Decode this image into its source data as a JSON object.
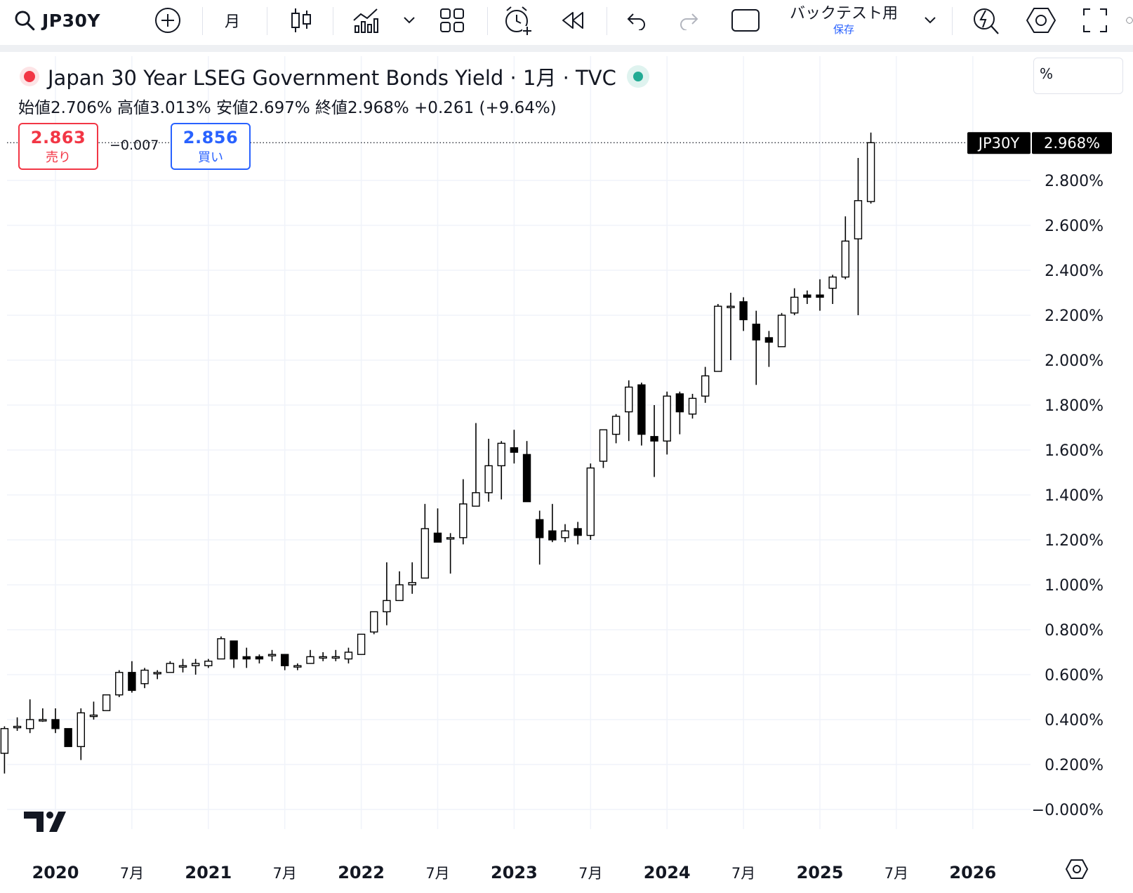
{
  "toolbar": {
    "symbol": "JP30Y",
    "interval": "月",
    "backtest_title": "バックテスト用",
    "backtest_sub": "保存"
  },
  "legend": {
    "title": "Japan 30 Year LSEG Government Bonds Yield · 1月 · TVC",
    "ohlc": "始値2.706%  高値3.013%  安値2.697%  終値2.968%  +0.261 (+9.64%)"
  },
  "trade": {
    "sell_price": "2.863",
    "sell_label": "売り",
    "spread": "−0.007",
    "buy_price": "2.856",
    "buy_label": "買い"
  },
  "scale_mode": "%",
  "colors": {
    "up_body": "#ffffff",
    "down_body": "#000000",
    "wick": "#000000",
    "grid": "#f0f3fa",
    "price_label_bg": "#000000",
    "sell": "#f23645",
    "buy": "#2962ff"
  },
  "chart_data": {
    "type": "candlestick",
    "symbol": "JP30Y",
    "interval": "1M",
    "last_price_label": "JP30Y",
    "last_price": "2.968%",
    "y_ticks": [
      "2.800%",
      "2.600%",
      "2.400%",
      "2.200%",
      "2.000%",
      "1.800%",
      "1.600%",
      "1.400%",
      "1.200%",
      "1.000%",
      "0.800%",
      "0.600%",
      "0.400%",
      "0.200%",
      "−0.000%"
    ],
    "ylim": [
      -0.02,
      3.3
    ],
    "x_ticks": [
      {
        "label": "2020",
        "date": "2020-01",
        "bold": true
      },
      {
        "label": "7月",
        "date": "2020-07",
        "bold": false
      },
      {
        "label": "2021",
        "date": "2021-01",
        "bold": true
      },
      {
        "label": "7月",
        "date": "2021-07",
        "bold": false
      },
      {
        "label": "2022",
        "date": "2022-01",
        "bold": true
      },
      {
        "label": "7月",
        "date": "2022-07",
        "bold": false
      },
      {
        "label": "2023",
        "date": "2023-01",
        "bold": true
      },
      {
        "label": "7月",
        "date": "2023-07",
        "bold": false
      },
      {
        "label": "2024",
        "date": "2024-01",
        "bold": true
      },
      {
        "label": "7月",
        "date": "2024-07",
        "bold": false
      },
      {
        "label": "2025",
        "date": "2025-01",
        "bold": true
      },
      {
        "label": "7月",
        "date": "2025-07",
        "bold": false
      },
      {
        "label": "2026",
        "date": "2026-01",
        "bold": true
      }
    ],
    "candles": [
      {
        "date": "2019-09",
        "o": 0.25,
        "h": 0.37,
        "l": 0.16,
        "c": 0.36
      },
      {
        "date": "2019-10",
        "o": 0.37,
        "h": 0.41,
        "l": 0.35,
        "c": 0.37
      },
      {
        "date": "2019-11",
        "o": 0.36,
        "h": 0.49,
        "l": 0.34,
        "c": 0.4
      },
      {
        "date": "2019-12",
        "o": 0.4,
        "h": 0.45,
        "l": 0.39,
        "c": 0.4
      },
      {
        "date": "2020-01",
        "o": 0.4,
        "h": 0.45,
        "l": 0.34,
        "c": 0.36
      },
      {
        "date": "2020-02",
        "o": 0.36,
        "h": 0.36,
        "l": 0.28,
        "c": 0.28
      },
      {
        "date": "2020-03",
        "o": 0.28,
        "h": 0.45,
        "l": 0.22,
        "c": 0.43
      },
      {
        "date": "2020-04",
        "o": 0.42,
        "h": 0.48,
        "l": 0.4,
        "c": 0.42
      },
      {
        "date": "2020-05",
        "o": 0.44,
        "h": 0.51,
        "l": 0.44,
        "c": 0.51
      },
      {
        "date": "2020-06",
        "o": 0.51,
        "h": 0.62,
        "l": 0.5,
        "c": 0.61
      },
      {
        "date": "2020-07",
        "o": 0.61,
        "h": 0.66,
        "l": 0.52,
        "c": 0.53
      },
      {
        "date": "2020-08",
        "o": 0.56,
        "h": 0.63,
        "l": 0.54,
        "c": 0.62
      },
      {
        "date": "2020-09",
        "o": 0.61,
        "h": 0.62,
        "l": 0.58,
        "c": 0.61
      },
      {
        "date": "2020-10",
        "o": 0.61,
        "h": 0.66,
        "l": 0.61,
        "c": 0.65
      },
      {
        "date": "2020-11",
        "o": 0.64,
        "h": 0.67,
        "l": 0.61,
        "c": 0.64
      },
      {
        "date": "2020-12",
        "o": 0.64,
        "h": 0.67,
        "l": 0.6,
        "c": 0.65
      },
      {
        "date": "2021-01",
        "o": 0.64,
        "h": 0.67,
        "l": 0.63,
        "c": 0.66
      },
      {
        "date": "2021-02",
        "o": 0.67,
        "h": 0.77,
        "l": 0.67,
        "c": 0.76
      },
      {
        "date": "2021-03",
        "o": 0.75,
        "h": 0.75,
        "l": 0.63,
        "c": 0.67
      },
      {
        "date": "2021-04",
        "o": 0.68,
        "h": 0.72,
        "l": 0.63,
        "c": 0.67
      },
      {
        "date": "2021-05",
        "o": 0.68,
        "h": 0.69,
        "l": 0.65,
        "c": 0.67
      },
      {
        "date": "2021-06",
        "o": 0.69,
        "h": 0.71,
        "l": 0.66,
        "c": 0.69
      },
      {
        "date": "2021-07",
        "o": 0.69,
        "h": 0.69,
        "l": 0.62,
        "c": 0.64
      },
      {
        "date": "2021-08",
        "o": 0.64,
        "h": 0.65,
        "l": 0.62,
        "c": 0.64
      },
      {
        "date": "2021-09",
        "o": 0.65,
        "h": 0.71,
        "l": 0.65,
        "c": 0.68
      },
      {
        "date": "2021-10",
        "o": 0.68,
        "h": 0.7,
        "l": 0.66,
        "c": 0.68
      },
      {
        "date": "2021-11",
        "o": 0.68,
        "h": 0.71,
        "l": 0.66,
        "c": 0.68
      },
      {
        "date": "2021-12",
        "o": 0.67,
        "h": 0.72,
        "l": 0.65,
        "c": 0.7
      },
      {
        "date": "2022-01",
        "o": 0.69,
        "h": 0.78,
        "l": 0.69,
        "c": 0.78
      },
      {
        "date": "2022-02",
        "o": 0.79,
        "h": 0.88,
        "l": 0.78,
        "c": 0.88
      },
      {
        "date": "2022-03",
        "o": 0.88,
        "h": 1.1,
        "l": 0.82,
        "c": 0.93
      },
      {
        "date": "2022-04",
        "o": 0.93,
        "h": 1.06,
        "l": 0.93,
        "c": 1.0
      },
      {
        "date": "2022-05",
        "o": 1.0,
        "h": 1.1,
        "l": 0.96,
        "c": 1.01
      },
      {
        "date": "2022-06",
        "o": 1.03,
        "h": 1.36,
        "l": 1.03,
        "c": 1.25
      },
      {
        "date": "2022-07",
        "o": 1.23,
        "h": 1.34,
        "l": 1.19,
        "c": 1.19
      },
      {
        "date": "2022-08",
        "o": 1.21,
        "h": 1.23,
        "l": 1.05,
        "c": 1.21
      },
      {
        "date": "2022-09",
        "o": 1.21,
        "h": 1.47,
        "l": 1.18,
        "c": 1.36
      },
      {
        "date": "2022-10",
        "o": 1.35,
        "h": 1.72,
        "l": 1.35,
        "c": 1.41
      },
      {
        "date": "2022-11",
        "o": 1.41,
        "h": 1.65,
        "l": 1.37,
        "c": 1.53
      },
      {
        "date": "2022-12",
        "o": 1.53,
        "h": 1.64,
        "l": 1.38,
        "c": 1.63
      },
      {
        "date": "2023-01",
        "o": 1.61,
        "h": 1.69,
        "l": 1.54,
        "c": 1.59
      },
      {
        "date": "2023-02",
        "o": 1.58,
        "h": 1.64,
        "l": 1.37,
        "c": 1.37
      },
      {
        "date": "2023-03",
        "o": 1.29,
        "h": 1.33,
        "l": 1.09,
        "c": 1.21
      },
      {
        "date": "2023-04",
        "o": 1.24,
        "h": 1.36,
        "l": 1.19,
        "c": 1.2
      },
      {
        "date": "2023-05",
        "o": 1.21,
        "h": 1.27,
        "l": 1.19,
        "c": 1.24
      },
      {
        "date": "2023-06",
        "o": 1.25,
        "h": 1.28,
        "l": 1.18,
        "c": 1.22
      },
      {
        "date": "2023-07",
        "o": 1.22,
        "h": 1.54,
        "l": 1.2,
        "c": 1.52
      },
      {
        "date": "2023-08",
        "o": 1.55,
        "h": 1.68,
        "l": 1.52,
        "c": 1.69
      },
      {
        "date": "2023-09",
        "o": 1.67,
        "h": 1.76,
        "l": 1.63,
        "c": 1.75
      },
      {
        "date": "2023-10",
        "o": 1.77,
        "h": 1.91,
        "l": 1.64,
        "c": 1.88
      },
      {
        "date": "2023-11",
        "o": 1.89,
        "h": 1.9,
        "l": 1.62,
        "c": 1.67
      },
      {
        "date": "2023-12",
        "o": 1.66,
        "h": 1.8,
        "l": 1.48,
        "c": 1.64
      },
      {
        "date": "2024-01",
        "o": 1.64,
        "h": 1.86,
        "l": 1.58,
        "c": 1.84
      },
      {
        "date": "2024-02",
        "o": 1.85,
        "h": 1.86,
        "l": 1.67,
        "c": 1.77
      },
      {
        "date": "2024-03",
        "o": 1.76,
        "h": 1.85,
        "l": 1.74,
        "c": 1.83
      },
      {
        "date": "2024-04",
        "o": 1.84,
        "h": 1.97,
        "l": 1.81,
        "c": 1.93
      },
      {
        "date": "2024-05",
        "o": 1.95,
        "h": 2.25,
        "l": 1.95,
        "c": 2.24
      },
      {
        "date": "2024-06",
        "o": 2.24,
        "h": 2.3,
        "l": 2.0,
        "c": 2.24
      },
      {
        "date": "2024-07",
        "o": 2.26,
        "h": 2.28,
        "l": 2.13,
        "c": 2.18
      },
      {
        "date": "2024-08",
        "o": 2.16,
        "h": 2.22,
        "l": 1.89,
        "c": 2.09
      },
      {
        "date": "2024-09",
        "o": 2.1,
        "h": 2.13,
        "l": 1.97,
        "c": 2.08
      },
      {
        "date": "2024-10",
        "o": 2.06,
        "h": 2.21,
        "l": 2.06,
        "c": 2.2
      },
      {
        "date": "2024-11",
        "o": 2.21,
        "h": 2.32,
        "l": 2.2,
        "c": 2.28
      },
      {
        "date": "2024-12",
        "o": 2.29,
        "h": 2.31,
        "l": 2.25,
        "c": 2.28
      },
      {
        "date": "2025-01",
        "o": 2.29,
        "h": 2.36,
        "l": 2.22,
        "c": 2.28
      },
      {
        "date": "2025-02",
        "o": 2.32,
        "h": 2.38,
        "l": 2.25,
        "c": 2.37
      },
      {
        "date": "2025-03",
        "o": 2.37,
        "h": 2.64,
        "l": 2.36,
        "c": 2.53
      },
      {
        "date": "2025-04",
        "o": 2.54,
        "h": 2.9,
        "l": 2.2,
        "c": 2.71
      },
      {
        "date": "2025-05",
        "o": 2.706,
        "h": 3.013,
        "l": 2.697,
        "c": 2.968
      }
    ]
  }
}
